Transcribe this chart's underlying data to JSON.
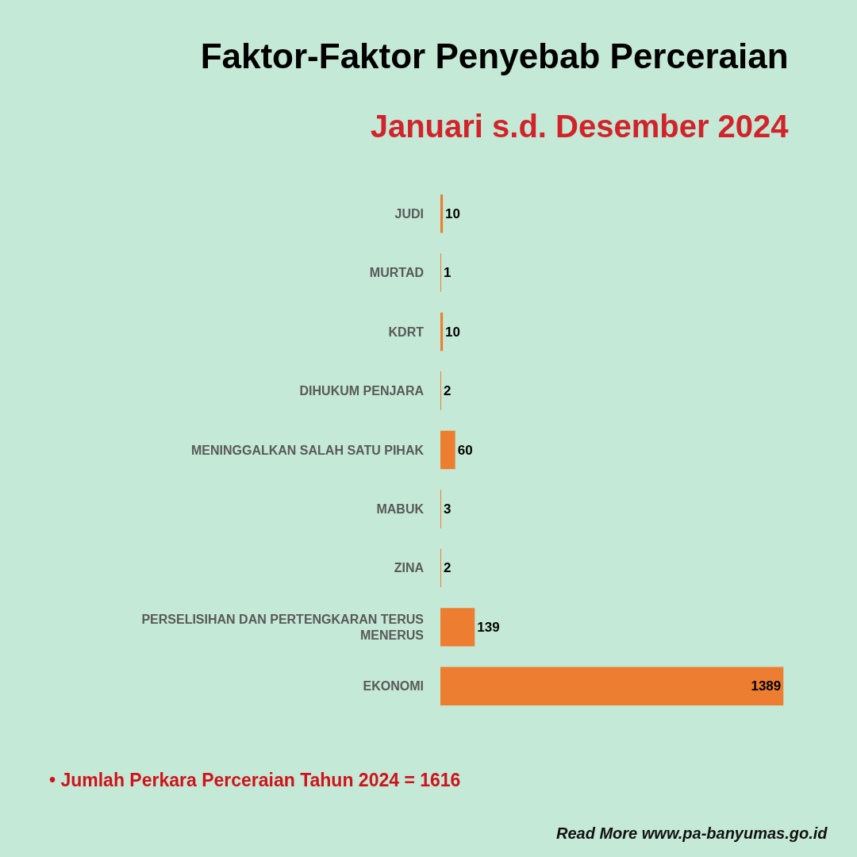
{
  "chart_data": {
    "type": "bar",
    "orientation": "horizontal",
    "title": "Faktor-Faktor Penyebab Perceraian",
    "subtitle": "Januari s.d. Desember 2024",
    "categories": [
      "JUDI",
      "MURTAD",
      "KDRT",
      "DIHUKUM PENJARA",
      "MENINGGALKAN SALAH SATU PIHAK",
      "MABUK",
      "ZINA",
      "PERSELISIHAN DAN PERTENGKARAN TERUS MENERUS",
      "EKONOMI"
    ],
    "values": [
      10,
      1,
      10,
      2,
      60,
      3,
      2,
      139,
      1389
    ],
    "color": "#ed7d31",
    "data_labels": true,
    "annotations": [
      "• Jumlah Perkara Perceraian Tahun 2024 = 1616",
      "Read More www.pa-banyumas.go.id"
    ]
  }
}
